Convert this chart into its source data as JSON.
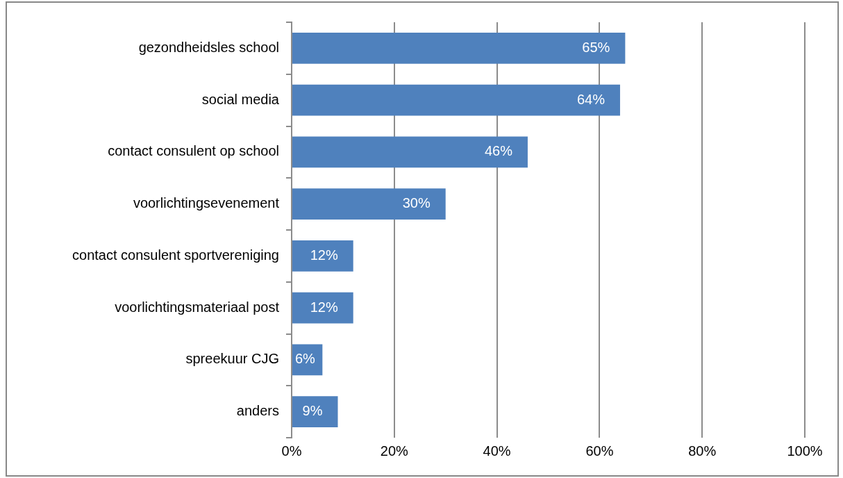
{
  "chart_data": {
    "type": "bar",
    "orientation": "horizontal",
    "categories": [
      "gezondheidsles school",
      "social media",
      "contact consulent op school",
      "voorlichtingsevenement",
      "contact consulent sportvereniging",
      "voorlichtingsmateriaal post",
      "spreekuur CJG",
      "anders"
    ],
    "values": [
      65,
      64,
      46,
      30,
      12,
      12,
      6,
      9
    ],
    "color": "#4f81bd",
    "xlim": [
      0,
      100
    ],
    "xticks": [
      {
        "value": 0,
        "label": "0%"
      },
      {
        "value": 20,
        "label": "20%"
      },
      {
        "value": 40,
        "label": "40%"
      },
      {
        "value": 60,
        "label": "60%"
      },
      {
        "value": 80,
        "label": "80%"
      },
      {
        "value": 100,
        "label": "100%"
      }
    ],
    "value_labels": [
      "65%",
      "64%",
      "46%",
      "30%",
      "12%",
      "12%",
      "6%",
      "9%"
    ],
    "grid": "x",
    "legend": false
  }
}
